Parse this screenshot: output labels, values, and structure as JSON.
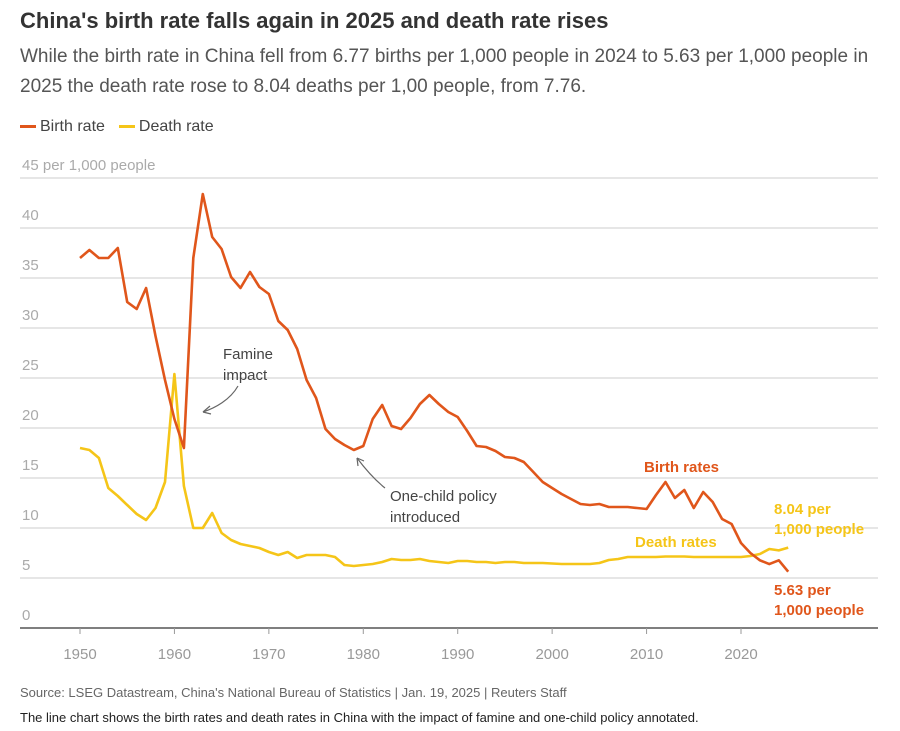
{
  "title": "China's birth rate falls again in 2025 and death rate rises",
  "subtitle": "While the birth rate in China fell from 6.77 births per 1,000 people in 2024 to 5.63 per 1,000 people in 2025 the death rate rose to 8.04 deaths per 1,00 people, from 7.76.",
  "legend": [
    {
      "label": "Birth rate",
      "color": "#e0561b"
    },
    {
      "label": "Death rate",
      "color": "#f5c518"
    }
  ],
  "source": "Source: LSEG Datastream, China's National Bureau of Statistics | Jan. 19, 2025  | Reuters Staff",
  "description": "The line chart shows the birth rates and death rates in China with the impact of famine and one-child policy annotated.",
  "chart_data": {
    "type": "line",
    "ylabel": "per 1,000 people",
    "ylim": [
      0,
      45
    ],
    "yticks": [
      "0",
      "5",
      "10",
      "15",
      "20",
      "25",
      "30",
      "35",
      "40",
      "45 per 1,000 people"
    ],
    "xlim": [
      1941,
      2042
    ],
    "xticks": [
      "1950",
      "1960",
      "1970",
      "1980",
      "1990",
      "2000",
      "2010",
      "2020"
    ],
    "x": [
      1950,
      1951,
      1952,
      1953,
      1954,
      1955,
      1956,
      1957,
      1958,
      1959,
      1960,
      1961,
      1962,
      1963,
      1964,
      1965,
      1966,
      1967,
      1968,
      1969,
      1970,
      1971,
      1972,
      1973,
      1974,
      1975,
      1976,
      1977,
      1978,
      1979,
      1980,
      1981,
      1982,
      1983,
      1984,
      1985,
      1986,
      1987,
      1988,
      1989,
      1990,
      1991,
      1992,
      1993,
      1994,
      1995,
      1996,
      1997,
      1998,
      1999,
      2000,
      2001,
      2002,
      2003,
      2004,
      2005,
      2006,
      2007,
      2008,
      2009,
      2010,
      2011,
      2012,
      2013,
      2014,
      2015,
      2016,
      2017,
      2018,
      2019,
      2020,
      2021,
      2022,
      2023,
      2024,
      2025
    ],
    "series": [
      {
        "name": "Birth rate",
        "color": "#e0561b",
        "values": [
          37.0,
          37.8,
          37.0,
          37.0,
          38.0,
          32.6,
          31.9,
          34.0,
          29.2,
          24.8,
          20.9,
          18.0,
          37.0,
          43.4,
          39.1,
          37.9,
          35.1,
          34.0,
          35.6,
          34.1,
          33.4,
          30.7,
          29.8,
          27.9,
          24.8,
          23.0,
          19.9,
          18.9,
          18.3,
          17.8,
          18.2,
          20.9,
          22.3,
          20.2,
          19.9,
          21.0,
          22.4,
          23.3,
          22.4,
          21.6,
          21.1,
          19.7,
          18.2,
          18.1,
          17.7,
          17.1,
          17.0,
          16.6,
          15.6,
          14.6,
          14.0,
          13.4,
          12.9,
          12.4,
          12.3,
          12.4,
          12.1,
          12.1,
          12.1,
          12.0,
          11.9,
          13.3,
          14.6,
          13.0,
          13.8,
          12.0,
          13.6,
          12.6,
          10.9,
          10.4,
          8.5,
          7.5,
          6.77,
          6.39,
          6.77,
          5.63
        ]
      },
      {
        "name": "Death rate",
        "color": "#f5c518",
        "values": [
          18.0,
          17.8,
          17.0,
          14.0,
          13.2,
          12.3,
          11.4,
          10.8,
          12.0,
          14.6,
          25.4,
          14.2,
          10.0,
          10.0,
          11.5,
          9.5,
          8.8,
          8.4,
          8.2,
          8.0,
          7.6,
          7.3,
          7.6,
          7.0,
          7.3,
          7.3,
          7.3,
          7.1,
          6.3,
          6.2,
          6.3,
          6.4,
          6.6,
          6.9,
          6.8,
          6.8,
          6.9,
          6.7,
          6.6,
          6.5,
          6.7,
          6.7,
          6.6,
          6.6,
          6.5,
          6.6,
          6.6,
          6.5,
          6.5,
          6.5,
          6.45,
          6.4,
          6.4,
          6.4,
          6.4,
          6.5,
          6.8,
          6.9,
          7.1,
          7.1,
          7.1,
          7.1,
          7.15,
          7.15,
          7.15,
          7.1,
          7.1,
          7.1,
          7.1,
          7.1,
          7.1,
          7.2,
          7.4,
          7.9,
          7.76,
          8.04
        ]
      }
    ],
    "annotations": {
      "famine": [
        "Famine",
        "impact"
      ],
      "one_child": [
        "One-child policy",
        "introduced"
      ],
      "birth_label": "Birth rates",
      "death_label": "Death rates",
      "death_end": [
        "8.04 per",
        "1,000 people"
      ],
      "birth_end": [
        "5.63 per",
        "1,000 people"
      ]
    }
  }
}
